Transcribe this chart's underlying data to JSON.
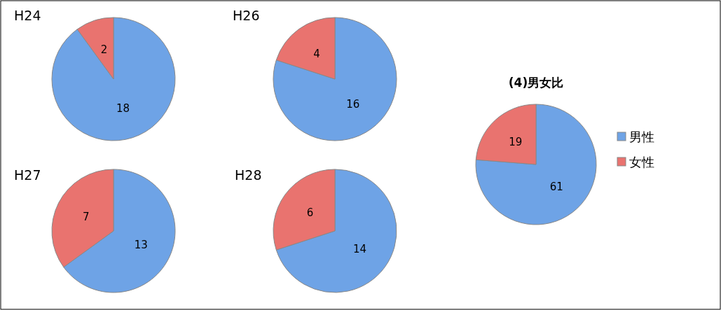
{
  "chart_data": [
    {
      "type": "pie",
      "title": "H24",
      "categories": [
        null,
        null
      ],
      "values": [
        18,
        2
      ],
      "colors": [
        "#6ea3e6",
        "#e9736f"
      ],
      "data_labels": true
    },
    {
      "type": "pie",
      "title": "H26",
      "categories": [
        null,
        null
      ],
      "values": [
        16,
        4
      ],
      "colors": [
        "#6ea3e6",
        "#e9736f"
      ],
      "data_labels": true
    },
    {
      "type": "pie",
      "title": "H27",
      "categories": [
        null,
        null
      ],
      "values": [
        13,
        7
      ],
      "colors": [
        "#6ea3e6",
        "#e9736f"
      ],
      "data_labels": true
    },
    {
      "type": "pie",
      "title": "H28",
      "categories": [
        null,
        null
      ],
      "values": [
        14,
        6
      ],
      "colors": [
        "#6ea3e6",
        "#e9736f"
      ],
      "data_labels": true
    },
    {
      "type": "pie",
      "title": "(4)男女比",
      "categories": [
        "男性",
        "女性"
      ],
      "values": [
        61,
        19
      ],
      "colors": [
        "#6ea3e6",
        "#e9736f"
      ],
      "data_labels": true,
      "legend": "right"
    }
  ]
}
